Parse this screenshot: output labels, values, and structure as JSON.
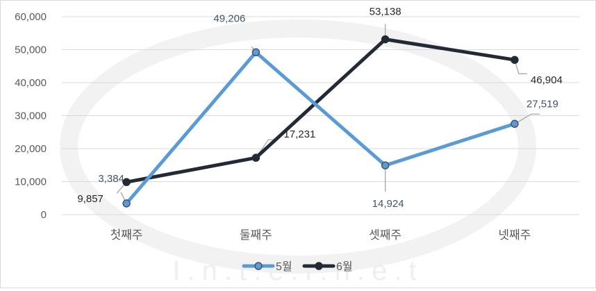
{
  "chart_data": {
    "type": "line",
    "categories": [
      "첫째주",
      "둘째주",
      "셋째주",
      "넷째주"
    ],
    "series": [
      {
        "name": "5월",
        "values": [
          3384,
          49206,
          14924,
          27519
        ],
        "labels": [
          "3,384",
          "49,206",
          "14,924",
          "27,519"
        ],
        "color": "#5b9bd5",
        "label_color": "#44546a"
      },
      {
        "name": "6월",
        "values": [
          9857,
          17231,
          53138,
          46904
        ],
        "labels": [
          "9,857",
          "17,231",
          "53,138",
          "46,904"
        ],
        "color": "#222a35",
        "label_color": "#262626"
      }
    ],
    "ylim": [
      0,
      60000
    ],
    "yticks": [
      0,
      10000,
      20000,
      30000,
      40000,
      50000,
      60000
    ],
    "ytick_labels": [
      "0",
      "10,000",
      "20,000",
      "30,000",
      "40,000",
      "50,000",
      "60,000"
    ],
    "grid": true,
    "legend": "bottom",
    "watermark": "I.n.t.e.r.n.e.t"
  }
}
